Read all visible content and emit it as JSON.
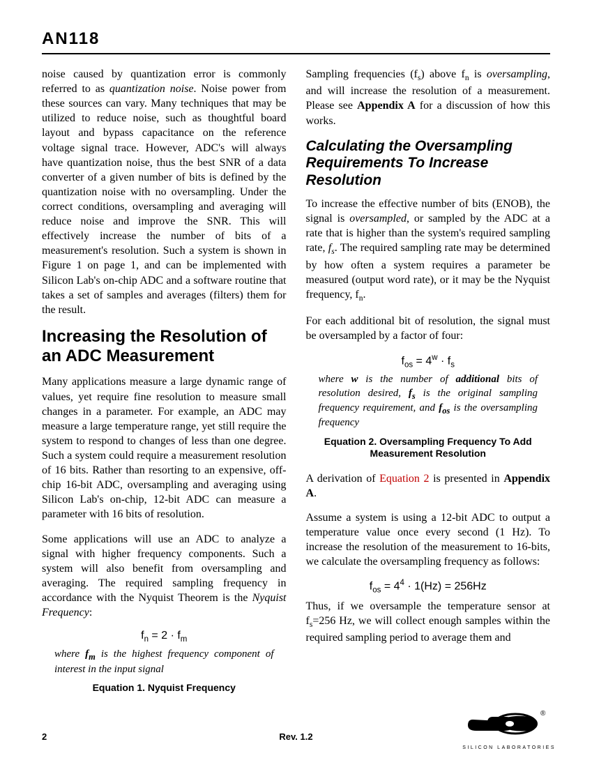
{
  "header": {
    "docid": "AN118"
  },
  "left": {
    "p1": "noise caused by quantization error is commonly referred to as <i>quantization noise</i>. Noise power from these sources can vary. Many techniques that may be utilized to reduce noise, such as thoughtful board layout and bypass capacitance on the reference voltage signal trace. However, ADC's will always have quantization noise, thus the best SNR of a data converter of a given number of bits is defined by the quantization noise with no oversampling. Under the correct conditions, oversampling and averaging will reduce noise and improve the SNR. This will effectively increase the number of bits of a measurement's resolution. Such a system is shown in Figure 1 on page 1, and can be implemented with Silicon Lab's on-chip ADC and a software routine that takes a set of samples and averages (filters) them for the result.",
    "h1": "Increasing the Resolution of an ADC Measurement",
    "p2": "Many applications measure a large dynamic range of values, yet require fine resolution to measure small changes in a parameter. For example, an ADC may measure a large temperature range, yet still require the system to respond to changes of less than one degree. Such a system could require a measurement resolution of 16 bits. Rather than resorting to an expensive, off-chip 16-bit ADC, oversampling and averaging using Silicon Lab's on-chip, 12-bit ADC can measure a parameter with 16 bits of resolution.",
    "p3": "Some applications will use an ADC to analyze a signal with higher frequency components. Such a system will also benefit from oversampling and averaging. The required sampling frequency in accordance with the Nyquist Theorem is the <i>Nyquist Frequency</i>:",
    "eq1": "f<sub>n</sub> = 2 · f<sub>m</sub>",
    "eq1_note": "where <b>f<sub>m</sub></b> is the highest frequency component of interest in the input signal",
    "eq1_caption": "Equation 1. Nyquist Frequency"
  },
  "right": {
    "p1": "Sampling frequencies (f<sub>s</sub>) above f<sub>n</sub> is <i>oversampling</i>, and will increase the resolution of a measurement. Please see <b>Appendix A</b> for a discussion of how this works.",
    "h2": "Calculating the Oversampling Requirements To Increase Resolution",
    "p2": "To increase the effective number of bits (ENOB), the signal is <i>oversampled</i>, or sampled by the ADC at a rate that is higher than the system's required sampling rate, <i>f<sub>s</sub></i>. The required sampling rate may be determined by how often a system requires a parameter be measured (output word rate), or it may be the Nyquist frequency, f<sub>n</sub>.",
    "p3": "For each additional bit of resolution, the signal must be oversampled by a factor of four:",
    "eq2": "f<sub>os</sub> = 4<sup>w</sup> · f<sub>s</sub>",
    "eq2_note": "where <b>w</b> is the number of <b>additional</b> bits of resolution desired, <b>f<sub>s</sub></b> is the original sampling frequency requirement, and <b>f<sub>os</sub></b> is the oversampling frequency",
    "eq2_caption": "Equation 2. Oversampling Frequency To Add Measurement Resolution",
    "p4": "A derivation of <span class=\"xref\">Equation 2</span> is presented in <b>Appendix A</b>.",
    "p5": "Assume a system is using a 12-bit ADC to output a temperature value once every second (1 Hz). To increase the resolution of the measurement to 16-bits, we calculate the oversampling frequency as follows:",
    "eq3": "f<sub>os</sub> = 4<sup>4</sup> · 1(Hz) = 256Hz",
    "p6": "Thus, if we oversample the temperature sensor at f<sub>s</sub>=256 Hz, we will collect enough samples within the required sampling period to average them and"
  },
  "footer": {
    "page": "2",
    "rev": "Rev. 1.2",
    "logo_text": "SILICON LABORATORIES"
  }
}
